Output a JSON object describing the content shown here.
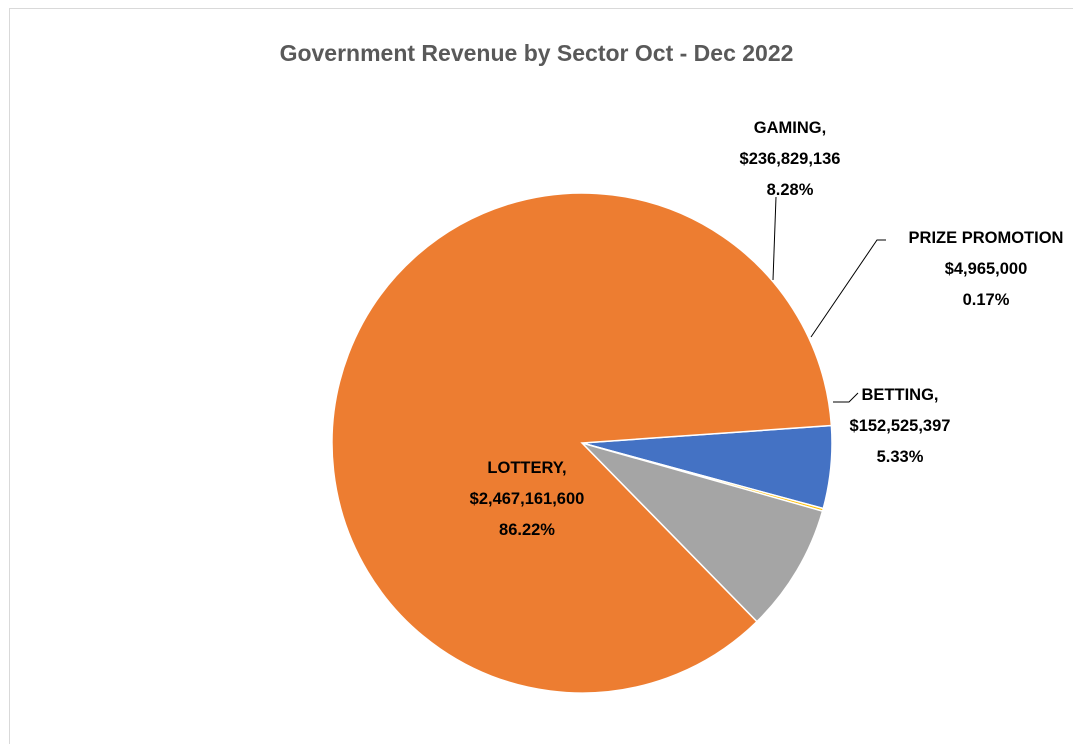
{
  "chart_data": {
    "type": "pie",
    "title": "Government Revenue by Sector Oct - Dec 2022",
    "slices": [
      {
        "name": "BETTING,",
        "value": 152525397,
        "value_label": "$152,525,397",
        "percent_label": "5.33%",
        "color": "#4472C4"
      },
      {
        "name": "PRIZE PROMOTION",
        "value": 4965000,
        "value_label": "$4,965,000",
        "percent_label": "0.17%",
        "color": "#FFC000"
      },
      {
        "name": "GAMING,",
        "value": 236829136,
        "value_label": "$236,829,136",
        "percent_label": "8.28%",
        "color": "#A5A5A5"
      },
      {
        "name": "LOTTERY,",
        "value": 2467161600,
        "value_label": "$2,467,161,600",
        "percent_label": "86.22%",
        "color": "#ED7D31"
      }
    ],
    "leader_lines": true
  }
}
